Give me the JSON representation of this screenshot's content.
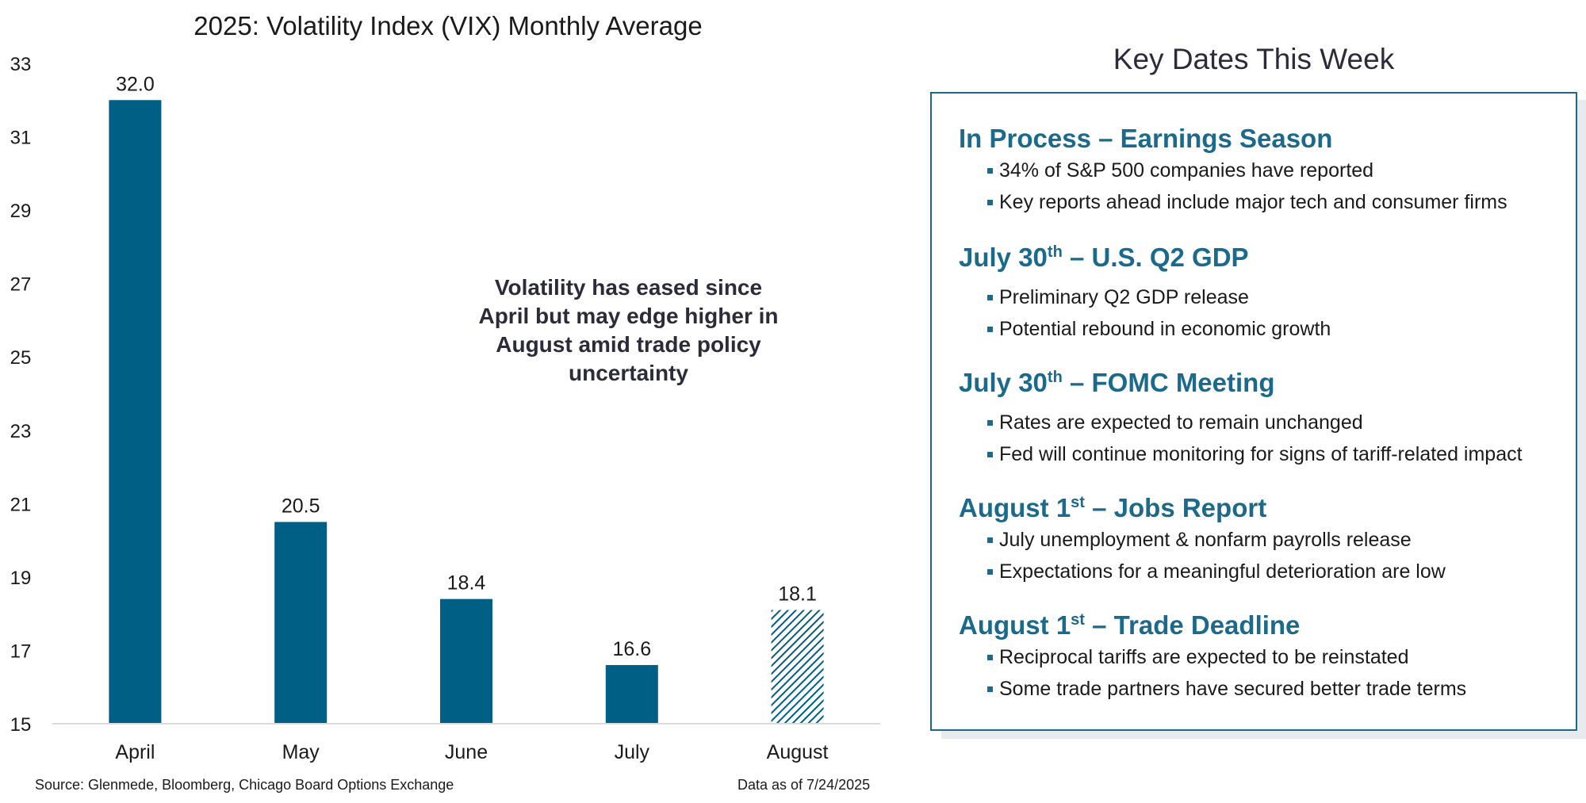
{
  "chart_data": {
    "type": "bar",
    "title": "2025: Volatility Index (VIX) Monthly Average",
    "categories": [
      "April",
      "May",
      "June",
      "July",
      "August"
    ],
    "values": [
      32.0,
      20.5,
      18.4,
      16.6,
      18.1
    ],
    "value_labels": [
      "32.0",
      "20.5",
      "18.4",
      "16.6",
      "18.1"
    ],
    "bar_style": [
      "solid",
      "solid",
      "solid",
      "solid",
      "hatched"
    ],
    "ylim": [
      15,
      33
    ],
    "yticks": [
      15,
      17,
      19,
      21,
      23,
      25,
      27,
      29,
      31,
      33
    ],
    "xlabel": "",
    "ylabel": "",
    "grid": false,
    "bar_color": "#005f84",
    "annotation": "Volatility has eased since April but may edge higher in August amid trade policy uncertainty"
  },
  "footer": {
    "source": "Source: Glenmede, Bloomberg, Chicago Board Options Exchange",
    "date": "Data as of 7/24/2025"
  },
  "panel": {
    "title": "Key Dates This Week",
    "accent_color": "#1b6a8c",
    "sections": [
      {
        "heading_pre": "In Process – Earnings Season",
        "heading_sup": "",
        "heading_post": "",
        "bullets": [
          "34% of S&P 500 companies have reported",
          "Key reports ahead include major tech and consumer firms"
        ]
      },
      {
        "heading_pre": "July 30",
        "heading_sup": "th",
        "heading_post": " – U.S. Q2 GDP",
        "bullets": [
          "Preliminary Q2 GDP release",
          "Potential rebound in economic growth"
        ]
      },
      {
        "heading_pre": "July 30",
        "heading_sup": "th",
        "heading_post": " – FOMC Meeting",
        "bullets": [
          "Rates are expected to remain unchanged",
          "Fed will continue monitoring for signs of tariff-related impact"
        ]
      },
      {
        "heading_pre": "August 1",
        "heading_sup": "st",
        "heading_post": " – Jobs Report",
        "bullets": [
          "July unemployment & nonfarm payrolls release",
          "Expectations for a meaningful deterioration are low"
        ]
      },
      {
        "heading_pre": "August 1",
        "heading_sup": "st",
        "heading_post": " – Trade Deadline",
        "bullets": [
          "Reciprocal tariffs are expected to be reinstated",
          "Some trade partners have secured better trade terms"
        ]
      }
    ]
  }
}
